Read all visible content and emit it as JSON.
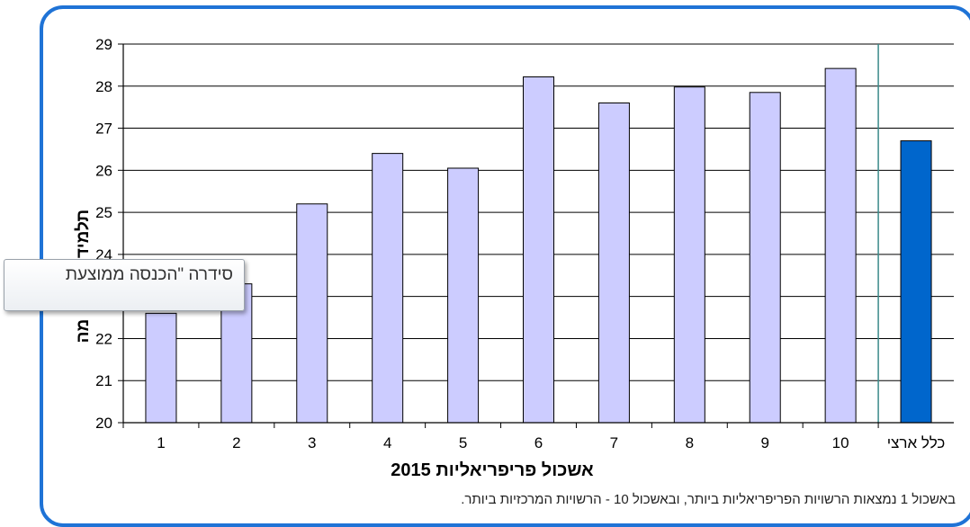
{
  "chart_data": {
    "type": "bar",
    "categories": [
      "1",
      "2",
      "3",
      "4",
      "5",
      "6",
      "7",
      "8",
      "9",
      "10",
      "כלל ארצי"
    ],
    "values": [
      22.6,
      23.3,
      25.2,
      26.4,
      26.05,
      28.22,
      27.6,
      27.98,
      27.85,
      28.42,
      26.7
    ],
    "ylim": [
      20,
      29
    ],
    "yticks": [
      20,
      21,
      22,
      23,
      24,
      25,
      26,
      27,
      28,
      29
    ],
    "xlabel": "אשכול פריפריאליות 2015",
    "ylabel": "...תלמידים ... מה",
    "grid": true,
    "colors": {
      "bar": "#ccccff",
      "highlight": "#0066cc",
      "separator": "#3a8a8a"
    }
  },
  "ylabel_parts": {
    "top": "תלמיד",
    "bottom": "מה"
  },
  "footnote": "באשכול 1 נמצאות הרשויות הפריפריאליות ביותר, ובאשכול 10 - הרשויות המרכזיות ביותר.",
  "tooltip": {
    "text": "סידרה \"הכנסה ממוצעת"
  }
}
